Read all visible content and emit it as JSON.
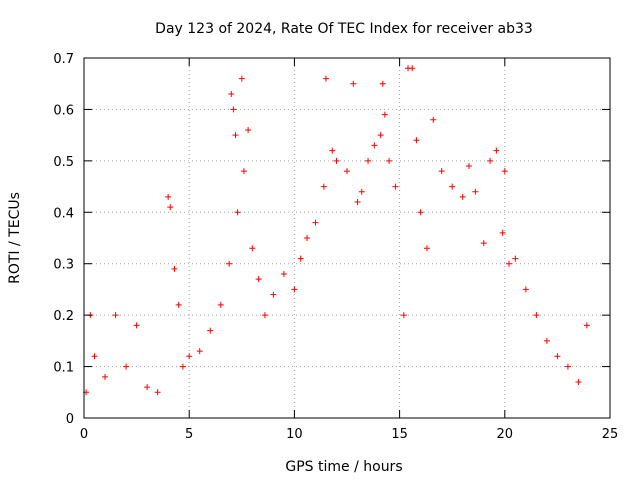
{
  "chart_data": {
    "type": "scatter",
    "title": "Day 123 of 2024, Rate Of TEC Index for receiver ab33",
    "xlabel": "GPS time / hours",
    "ylabel": "ROTI / TECUs",
    "xlim": [
      0,
      25
    ],
    "ylim": [
      0,
      0.7
    ],
    "xticks": [
      0,
      5,
      10,
      15,
      20,
      25
    ],
    "yticks": [
      0,
      0.1,
      0.2,
      0.3,
      0.4,
      0.5,
      0.6,
      0.7
    ],
    "xtick_labels": [
      "0",
      "5",
      "10",
      "15",
      "20",
      "25"
    ],
    "ytick_labels": [
      "0",
      "0.1",
      "0.2",
      "0.3",
      "0.4",
      "0.5",
      "0.6",
      "0.7"
    ],
    "grid": true,
    "marker": "+",
    "marker_color": "#ff0000",
    "series": [
      {
        "name": "ROTI",
        "x": [
          0.1,
          0.3,
          0.5,
          1.0,
          1.5,
          2.0,
          2.5,
          3.0,
          3.5,
          4.0,
          4.1,
          4.3,
          4.5,
          4.7,
          5.0,
          5.5,
          6.0,
          6.5,
          6.9,
          7.0,
          7.1,
          7.2,
          7.3,
          7.5,
          7.6,
          7.8,
          8.0,
          8.3,
          8.6,
          9.0,
          9.5,
          10.0,
          10.3,
          10.6,
          11.0,
          11.4,
          11.5,
          11.8,
          12.0,
          12.5,
          12.8,
          13.0,
          13.2,
          13.5,
          13.8,
          14.1,
          14.2,
          14.3,
          14.5,
          14.8,
          15.2,
          15.4,
          15.6,
          15.8,
          16.0,
          16.3,
          16.6,
          17.0,
          17.5,
          18.0,
          18.3,
          18.6,
          19.0,
          19.3,
          19.6,
          19.9,
          20.0,
          20.2,
          20.5,
          21.0,
          21.5,
          22.0,
          22.5,
          23.0,
          23.5,
          23.9
        ],
        "y": [
          0.05,
          0.2,
          0.12,
          0.08,
          0.2,
          0.1,
          0.18,
          0.06,
          0.05,
          0.43,
          0.41,
          0.29,
          0.22,
          0.1,
          0.12,
          0.13,
          0.17,
          0.22,
          0.3,
          0.63,
          0.6,
          0.55,
          0.4,
          0.66,
          0.48,
          0.56,
          0.33,
          0.27,
          0.2,
          0.24,
          0.28,
          0.25,
          0.31,
          0.35,
          0.38,
          0.45,
          0.66,
          0.52,
          0.5,
          0.48,
          0.65,
          0.42,
          0.44,
          0.5,
          0.53,
          0.55,
          0.65,
          0.59,
          0.5,
          0.45,
          0.2,
          0.68,
          0.68,
          0.54,
          0.4,
          0.33,
          0.58,
          0.48,
          0.45,
          0.43,
          0.49,
          0.44,
          0.34,
          0.5,
          0.52,
          0.36,
          0.48,
          0.3,
          0.31,
          0.25,
          0.2,
          0.15,
          0.12,
          0.1,
          0.07,
          0.18
        ]
      }
    ]
  }
}
